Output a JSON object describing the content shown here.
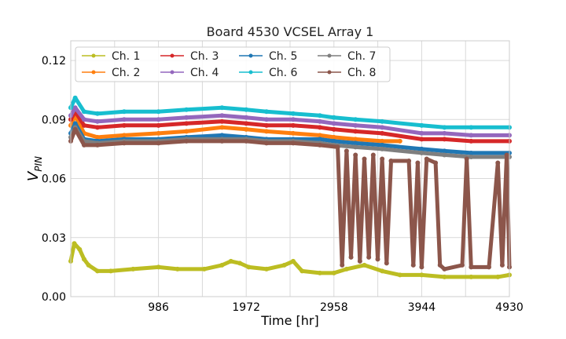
{
  "chart_data": {
    "type": "line",
    "title": "Board 4530 VCSEL Array 1",
    "xlabel": "Time [hr]",
    "ylabel_main": "V",
    "ylabel_sub": "PIN",
    "xlim": [
      0,
      4930
    ],
    "ylim": [
      0,
      0.13
    ],
    "x_ticks": [
      986,
      1972,
      2958,
      3944,
      4930
    ],
    "x_tick_labels": [
      "986",
      "1972",
      "2958",
      "3944",
      "4930"
    ],
    "y_ticks": [
      0,
      0.03,
      0.06,
      0.09,
      0.12
    ],
    "y_tick_labels": [
      "0.00",
      "0.03",
      "0.06",
      "0.09",
      "0.12"
    ],
    "grid": true,
    "legend_position": "top-left",
    "legend_columns": 4,
    "series": [
      {
        "name": "Ch. 1",
        "color": "#bcbd22",
        "x": [
          0,
          40,
          100,
          150,
          200,
          300,
          450,
          700,
          986,
          1200,
          1500,
          1700,
          1800,
          1900,
          2000,
          2200,
          2400,
          2500,
          2600,
          2800,
          2958,
          3100,
          3300,
          3500,
          3700,
          3944,
          4200,
          4500,
          4800,
          4930
        ],
        "y": [
          0.018,
          0.027,
          0.024,
          0.019,
          0.016,
          0.013,
          0.013,
          0.014,
          0.015,
          0.014,
          0.014,
          0.016,
          0.018,
          0.017,
          0.015,
          0.014,
          0.016,
          0.018,
          0.013,
          0.012,
          0.012,
          0.014,
          0.016,
          0.013,
          0.011,
          0.011,
          0.01,
          0.01,
          0.01,
          0.011
        ]
      },
      {
        "name": "Ch. 2",
        "color": "#ff7f0e",
        "x": [
          0,
          50,
          150,
          300,
          600,
          986,
          1300,
          1700,
          1972,
          2200,
          2500,
          2800,
          2958,
          3200,
          3500,
          3700
        ],
        "y": [
          0.087,
          0.092,
          0.083,
          0.081,
          0.082,
          0.083,
          0.084,
          0.086,
          0.085,
          0.084,
          0.083,
          0.082,
          0.081,
          0.08,
          0.079,
          0.079
        ]
      },
      {
        "name": "Ch. 3",
        "color": "#d62728",
        "x": [
          0,
          50,
          150,
          300,
          600,
          986,
          1300,
          1700,
          1972,
          2200,
          2500,
          2800,
          2958,
          3200,
          3500,
          3944,
          4200,
          4500,
          4930
        ],
        "y": [
          0.09,
          0.094,
          0.087,
          0.086,
          0.087,
          0.087,
          0.088,
          0.089,
          0.088,
          0.087,
          0.087,
          0.086,
          0.085,
          0.084,
          0.083,
          0.08,
          0.08,
          0.079,
          0.079
        ]
      },
      {
        "name": "Ch. 4",
        "color": "#9467bd",
        "x": [
          0,
          50,
          150,
          300,
          600,
          986,
          1300,
          1700,
          1972,
          2200,
          2500,
          2800,
          2958,
          3200,
          3500,
          3944,
          4200,
          4500,
          4930
        ],
        "y": [
          0.092,
          0.096,
          0.09,
          0.089,
          0.09,
          0.09,
          0.091,
          0.092,
          0.091,
          0.09,
          0.09,
          0.089,
          0.088,
          0.087,
          0.086,
          0.083,
          0.083,
          0.082,
          0.082
        ]
      },
      {
        "name": "Ch. 5",
        "color": "#1f77b4",
        "x": [
          0,
          50,
          150,
          300,
          600,
          986,
          1300,
          1700,
          1972,
          2200,
          2500,
          2800,
          2958,
          3200,
          3500,
          3944,
          4200,
          4500,
          4930
        ],
        "y": [
          0.083,
          0.088,
          0.08,
          0.079,
          0.08,
          0.08,
          0.081,
          0.082,
          0.081,
          0.08,
          0.08,
          0.08,
          0.079,
          0.078,
          0.077,
          0.075,
          0.074,
          0.073,
          0.073
        ]
      },
      {
        "name": "Ch. 6",
        "color": "#17becf",
        "x": [
          0,
          50,
          150,
          300,
          600,
          986,
          1300,
          1700,
          1972,
          2200,
          2500,
          2800,
          2958,
          3200,
          3500,
          3944,
          4200,
          4500,
          4930
        ],
        "y": [
          0.096,
          0.101,
          0.094,
          0.093,
          0.094,
          0.094,
          0.095,
          0.096,
          0.095,
          0.094,
          0.093,
          0.092,
          0.091,
          0.09,
          0.089,
          0.087,
          0.086,
          0.086,
          0.086
        ]
      },
      {
        "name": "Ch. 7",
        "color": "#7f7f7f",
        "x": [
          0,
          50,
          150,
          300,
          600,
          986,
          1300,
          1700,
          1972,
          2200,
          2500,
          2800,
          2958,
          3200,
          3500,
          3944,
          4200,
          4500,
          4930
        ],
        "y": [
          0.081,
          0.086,
          0.079,
          0.078,
          0.079,
          0.079,
          0.08,
          0.08,
          0.08,
          0.079,
          0.079,
          0.078,
          0.077,
          0.076,
          0.075,
          0.073,
          0.072,
          0.071,
          0.071
        ]
      },
      {
        "name": "Ch. 8",
        "color": "#8c564b",
        "x": [
          0,
          50,
          150,
          300,
          600,
          986,
          1300,
          1700,
          1972,
          2200,
          2500,
          2800,
          3000,
          3050,
          3100,
          3150,
          3200,
          3250,
          3300,
          3350,
          3400,
          3450,
          3500,
          3550,
          3600,
          3800,
          3850,
          3900,
          3944,
          4000,
          4100,
          4150,
          4200,
          4400,
          4450,
          4500,
          4700,
          4800,
          4850,
          4900,
          4930
        ],
        "y": [
          0.079,
          0.085,
          0.077,
          0.077,
          0.078,
          0.078,
          0.079,
          0.079,
          0.079,
          0.078,
          0.078,
          0.077,
          0.076,
          0.016,
          0.074,
          0.02,
          0.072,
          0.018,
          0.07,
          0.02,
          0.072,
          0.019,
          0.07,
          0.017,
          0.069,
          0.069,
          0.016,
          0.068,
          0.015,
          0.07,
          0.068,
          0.016,
          0.014,
          0.016,
          0.07,
          0.015,
          0.015,
          0.068,
          0.016,
          0.072,
          0.015
        ]
      }
    ]
  }
}
